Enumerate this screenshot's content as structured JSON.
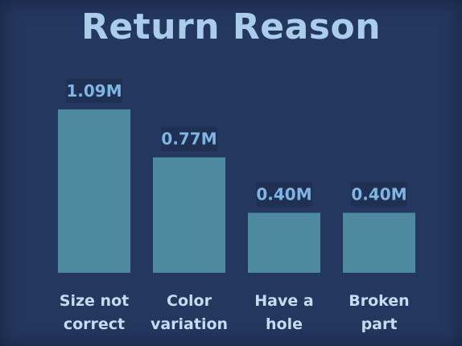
{
  "chart_data": {
    "type": "bar",
    "title": "Return Reason",
    "categories": [
      "Size not\ncorrect",
      "Color\nvariation",
      "Have a\nhole",
      "Broken\npart"
    ],
    "values": [
      1.09,
      0.77,
      0.4,
      0.4
    ],
    "data_labels": [
      "1.09M",
      "0.77M",
      "0.40M",
      "0.40M"
    ],
    "xlabel": "",
    "ylabel": "",
    "ylim": [
      0,
      1.09
    ],
    "grid": false,
    "legend": "none",
    "colors": {
      "background": "#24375f",
      "bar": "#4d8aa0",
      "title": "#a9cdeb",
      "data_label": "#7fb5e3",
      "data_label_bg": "#1f3052",
      "category_label": "#c4dcf0"
    }
  }
}
